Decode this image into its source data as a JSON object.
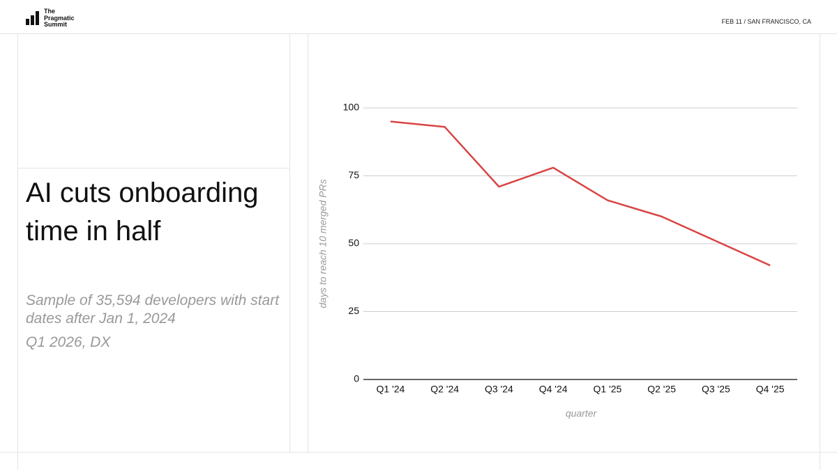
{
  "header": {
    "logo": [
      "The",
      "Pragmatic",
      "Summit"
    ],
    "event": "FEB 11 / SAN FRANCISCO, CA"
  },
  "slide": {
    "title": "AI cuts onboarding time in half",
    "subtitle": [
      "Sample of 35,594 developers with start dates after Jan 1, 2024",
      "Q1 2026, DX"
    ]
  },
  "chart_data": {
    "type": "line",
    "xlabel": "quarter",
    "ylabel": "days to reach 10 merged PRs",
    "categories": [
      "Q1 '24",
      "Q2 '24",
      "Q3 '24",
      "Q4 '24",
      "Q1 '25",
      "Q2 '25",
      "Q3 '25",
      "Q4 '25"
    ],
    "values": [
      95,
      93,
      71,
      78,
      66,
      60,
      51,
      42
    ],
    "color": "#d94444",
    "ylim": [
      0,
      100
    ],
    "yticks": [
      0,
      25,
      50,
      75,
      100
    ],
    "grid": true
  }
}
